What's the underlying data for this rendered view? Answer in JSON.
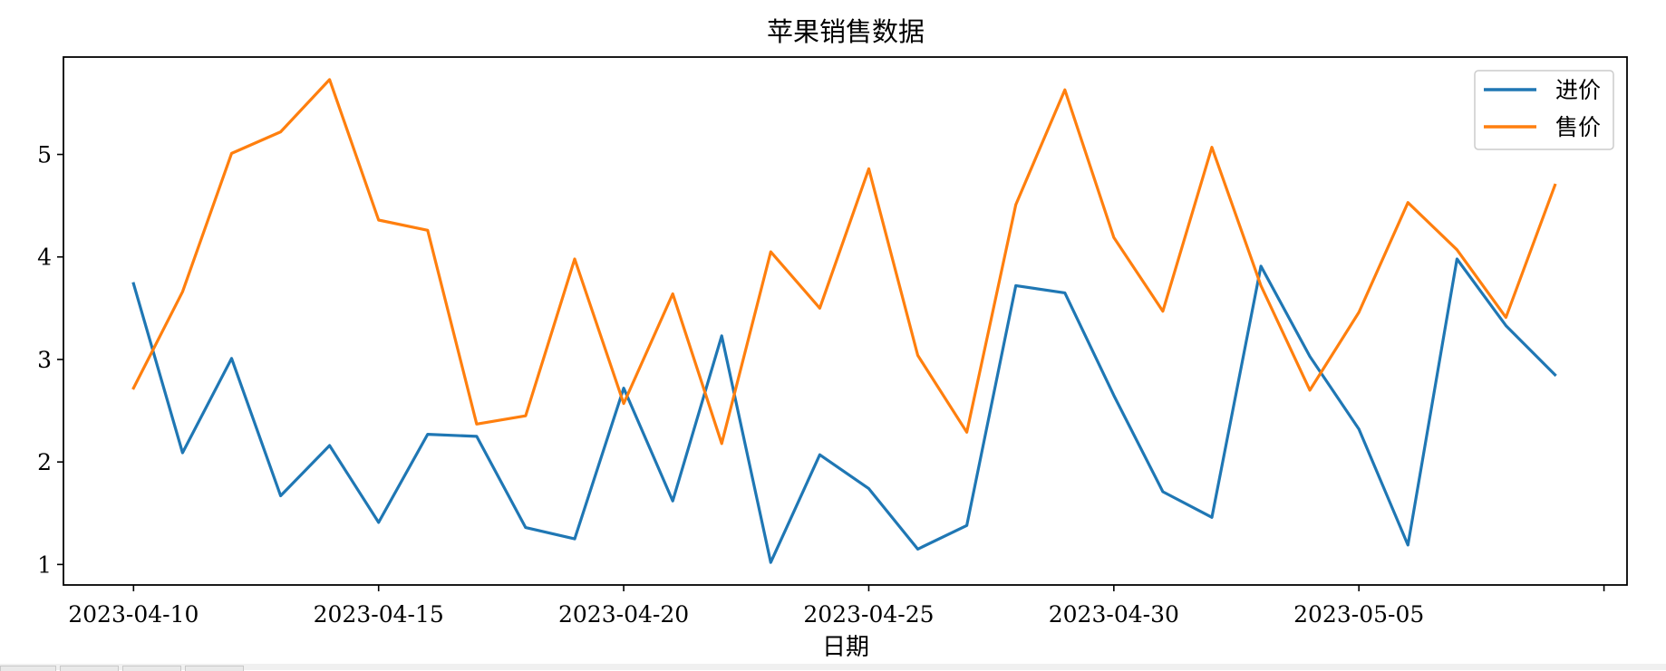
{
  "chart_data": {
    "type": "line",
    "title": "苹果销售数据",
    "xlabel": "日期",
    "ylabel": "",
    "x": [
      "2023-04-10",
      "2023-04-11",
      "2023-04-12",
      "2023-04-13",
      "2023-04-14",
      "2023-04-15",
      "2023-04-16",
      "2023-04-17",
      "2023-04-18",
      "2023-04-19",
      "2023-04-20",
      "2023-04-21",
      "2023-04-22",
      "2023-04-23",
      "2023-04-24",
      "2023-04-25",
      "2023-04-26",
      "2023-04-27",
      "2023-04-28",
      "2023-04-29",
      "2023-04-30",
      "2023-05-01",
      "2023-05-02",
      "2023-05-03",
      "2023-05-04",
      "2023-05-05",
      "2023-05-06",
      "2023-05-07",
      "2023-05-08",
      "2023-05-09"
    ],
    "xticks": [
      "2023-04-10",
      "2023-04-15",
      "2023-04-20",
      "2023-04-25",
      "2023-04-30",
      "2023-05-05",
      "2023-05-10"
    ],
    "xtick_labels": [
      "2023-04-10",
      "2023-04-15",
      "2023-04-20",
      "2023-04-25",
      "2023-04-30",
      "2023-05-05",
      ""
    ],
    "xlim": [
      "2023-04-08.57",
      "2023-05-10.47"
    ],
    "yticks": [
      1,
      2,
      3,
      4,
      5
    ],
    "ylim": [
      0.8,
      5.95
    ],
    "grid": false,
    "legend_position": "top-right",
    "series": [
      {
        "name": "进价",
        "color": "#1f77b4",
        "values": [
          3.74,
          2.09,
          3.01,
          1.67,
          2.16,
          1.41,
          2.27,
          2.25,
          1.36,
          1.25,
          2.72,
          1.62,
          3.23,
          1.02,
          2.07,
          1.74,
          1.15,
          1.38,
          3.72,
          3.65,
          2.65,
          1.71,
          1.46,
          3.91,
          3.03,
          2.32,
          1.19,
          3.98,
          3.33,
          2.85
        ]
      },
      {
        "name": "售价",
        "color": "#ff7f0e",
        "values": [
          2.72,
          3.66,
          5.01,
          5.22,
          5.73,
          4.36,
          4.26,
          2.37,
          2.45,
          3.98,
          2.57,
          3.64,
          2.18,
          4.05,
          3.5,
          4.86,
          3.04,
          2.29,
          4.51,
          5.63,
          4.19,
          3.47,
          5.07,
          3.72,
          2.7,
          3.46,
          4.53,
          4.07,
          3.41,
          4.7
        ]
      }
    ]
  }
}
